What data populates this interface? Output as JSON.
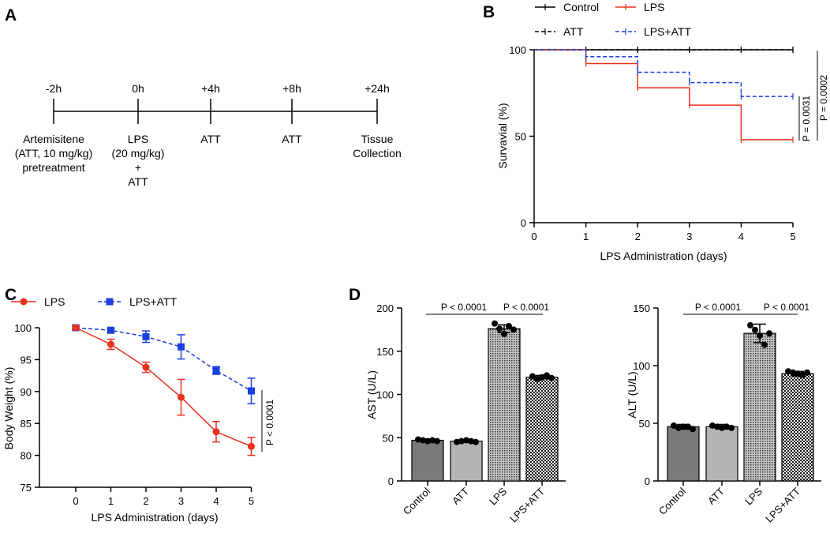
{
  "panel_labels": {
    "a": "A",
    "b": "B",
    "c": "C",
    "d": "D"
  },
  "timeline": {
    "ticks": [
      "-2h",
      "0h",
      "+4h",
      "+8h",
      "+24h"
    ],
    "annotations": [
      [
        "Artemisitene",
        "(ATT, 10 mg/kg)",
        "pretreatment"
      ],
      [
        "LPS",
        "(20 mg/kg)",
        "+",
        "ATT"
      ],
      [
        "ATT"
      ],
      [
        "ATT"
      ],
      [
        "Tissue",
        "Collection"
      ]
    ]
  },
  "colors": {
    "control": "#000000",
    "lps": "#e8321e",
    "lps_att": "#1a3fe0",
    "bar_control": "#7a7a7a",
    "bar_att": "#b4b4b4"
  },
  "chart_data": [
    {
      "panel": "B",
      "type": "line",
      "subtype": "survival-step",
      "xlabel": "LPS Administration (days)",
      "ylabel": "Survavial (%)",
      "xlim": [
        0,
        5
      ],
      "ylim": [
        0,
        100
      ],
      "xticks": [
        "0",
        "1",
        "2",
        "3",
        "4",
        "5"
      ],
      "yticks": [
        "0",
        "50",
        "100"
      ],
      "legend": [
        "Control",
        "LPS",
        "ATT",
        "LPS+ATT"
      ],
      "series": [
        {
          "name": "Control",
          "x": [
            0,
            5
          ],
          "y": [
            100,
            100
          ]
        },
        {
          "name": "ATT",
          "x": [
            0,
            5
          ],
          "y": [
            100,
            100
          ]
        },
        {
          "name": "LPS",
          "x": [
            0,
            1,
            2,
            3,
            4,
            5
          ],
          "y": [
            100,
            92,
            78,
            68,
            48,
            48
          ]
        },
        {
          "name": "LPS+ATT",
          "x": [
            0,
            1,
            2,
            3,
            4,
            5
          ],
          "y": [
            100,
            96,
            87,
            81,
            73,
            73
          ]
        }
      ],
      "annotations": [
        "P = 0.0031",
        "P = 0.0002"
      ]
    },
    {
      "panel": "C",
      "type": "line",
      "xlabel": "LPS Administration (days)",
      "ylabel": "Body Weight (%)",
      "xlim": [
        -1,
        5
      ],
      "ylim": [
        75,
        100
      ],
      "xticks": [
        "0",
        "1",
        "2",
        "3",
        "4",
        "5"
      ],
      "yticks": [
        "75",
        "80",
        "85",
        "90",
        "95",
        "100"
      ],
      "legend": [
        "LPS",
        "LPS+ATT"
      ],
      "x": [
        0,
        1,
        2,
        3,
        4,
        5
      ],
      "series": [
        {
          "name": "LPS",
          "values": [
            100,
            97.4,
            93.8,
            89.1,
            83.7,
            81.4
          ],
          "errors": [
            0.3,
            0.8,
            0.8,
            2.8,
            1.6,
            1.4
          ]
        },
        {
          "name": "LPS+ATT",
          "values": [
            100,
            99.6,
            98.6,
            97.0,
            93.3,
            90.1
          ],
          "errors": [
            0.2,
            0.3,
            0.9,
            1.9,
            0.6,
            2.0
          ]
        }
      ],
      "annotations": [
        "P < 0.0001"
      ]
    },
    {
      "panel": "D",
      "type": "bar",
      "categories": [
        "Control",
        "ATT",
        "LPS",
        "LPS+ATT"
      ],
      "ylabel": "AST (U/L)",
      "ylim": [
        0,
        200
      ],
      "yticks": [
        "0",
        "50",
        "100",
        "150",
        "200"
      ],
      "values": [
        47,
        46,
        176,
        120
      ],
      "errors": [
        1.5,
        1.5,
        4.5,
        2.0
      ],
      "points": [
        [
          48,
          47,
          46,
          47,
          46
        ],
        [
          45,
          46,
          47,
          46,
          45
        ],
        [
          182,
          176,
          170,
          179,
          175
        ],
        [
          121,
          118,
          120,
          122,
          119
        ]
      ],
      "annotations": [
        "P < 0.0001",
        "P < 0.0001"
      ]
    },
    {
      "panel": "D",
      "type": "bar",
      "categories": [
        "Control",
        "ATT",
        "LPS",
        "LPS+ATT"
      ],
      "ylabel": "ALT (U/L)",
      "ylim": [
        0,
        150
      ],
      "yticks": [
        "0",
        "50",
        "100",
        "150"
      ],
      "values": [
        47,
        47,
        128,
        93
      ],
      "errors": [
        2.0,
        2.0,
        8.0,
        2.0
      ],
      "points": [
        [
          48,
          46,
          47,
          47,
          45
        ],
        [
          48,
          47,
          46,
          47,
          46
        ],
        [
          135,
          131,
          126,
          118,
          128
        ],
        [
          95,
          94,
          93,
          92,
          94
        ]
      ],
      "annotations": [
        "P < 0.0001",
        "P < 0.0001"
      ]
    }
  ]
}
